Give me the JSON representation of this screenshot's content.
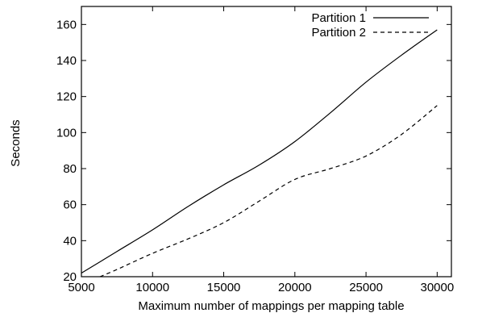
{
  "chart_data": {
    "type": "line",
    "title": "",
    "xlabel": "Maximum number of mappings per mapping table",
    "ylabel": "Seconds",
    "xlim": [
      5000,
      31000
    ],
    "ylim": [
      20,
      170
    ],
    "x_ticks": [
      5000,
      10000,
      15000,
      20000,
      25000,
      30000
    ],
    "y_ticks": [
      20,
      40,
      60,
      80,
      100,
      120,
      140,
      160
    ],
    "grid": false,
    "legend_position": "top-right",
    "series": [
      {
        "name": "Partition 1",
        "style": "solid",
        "color": "#000000",
        "x": [
          5000,
          7500,
          10000,
          12500,
          15000,
          17500,
          20000,
          22500,
          25000,
          27500,
          30000
        ],
        "y": [
          22,
          34,
          46,
          59,
          71,
          82,
          95,
          111,
          128,
          143,
          157
        ]
      },
      {
        "name": "Partition 2",
        "style": "dashed",
        "color": "#000000",
        "x": [
          6300,
          7500,
          10000,
          12500,
          15000,
          17500,
          20000,
          22500,
          25000,
          27500,
          30000
        ],
        "y": [
          20,
          24,
          33,
          41,
          50,
          62,
          74,
          80,
          87,
          99,
          115
        ]
      }
    ]
  }
}
